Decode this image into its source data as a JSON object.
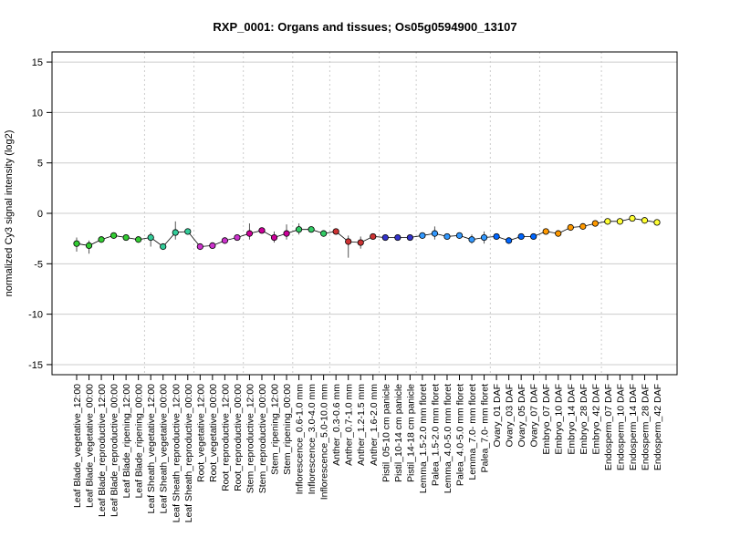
{
  "chart_data": {
    "type": "line",
    "title": "RXP_0001: Organs and tissues; Os05g0594900_13107",
    "xlabel": "",
    "ylabel": "normalized Cy3 signal intensity (log2)",
    "ylim": [
      -16,
      16
    ],
    "yticks": [
      15,
      10,
      5,
      0,
      -5,
      -10,
      -15
    ],
    "ytick_labels": [
      "15",
      "10",
      "5",
      "0",
      "-5",
      "-10",
      "-15"
    ],
    "grid": "horizontal solid; vertical dotted group separators",
    "categories": [
      "Leaf Blade_vegetative_12:00",
      "Leaf Blade_vegetative_00:00",
      "Leaf Blade_reproductive_12:00",
      "Leaf Blade_reproductive_00:00",
      "Leaf Blade_ripening_12:00",
      "Leaf Blade_ripening_00:00",
      "Leaf Sheath_vegetative_12:00",
      "Leaf Sheath_vegetative_00:00",
      "Leaf Sheath_reproductive_12:00",
      "Leaf Sheath_reproductive_00:00",
      "Root_vegetative_12:00",
      "Root_vegetative_00:00",
      "Root_reproductive_12:00",
      "Root_reproductive_00:00",
      "Stem_reproductive_12:00",
      "Stem_reproductive_00:00",
      "Stem_ripening_12:00",
      "Stem_ripening_00:00",
      "Inflorescence_0.6-1.0 mm",
      "Inflorescence_3.0-4.0 mm",
      "Inflorescence_5.0-10.0 mm",
      "Anther_0.3-0.6 mm",
      "Anther_0.7-1.0 mm",
      "Anther_1.2-1.5 mm",
      "Anther_1.6-2.0 mm",
      "Pistil_05-10 cm panicle",
      "Pistil_10-14 cm panicle",
      "Pistil_14-18 cm panicle",
      "Lemma_1.5-2.0 mm floret",
      "Palea_1.5-2.0 mm floret",
      "Lemma_4.0-5.0 mm floret",
      "Palea_4.0-5.0 mm floret",
      "Lemma_7.0- mm floret",
      "Palea_7.0- mm floret",
      "Ovary_01 DAF",
      "Ovary_03 DAF",
      "Ovary_05 DAF",
      "Ovary_07 DAF",
      "Embryo_07 DAF",
      "Embryo_10 DAF",
      "Embryo_14 DAF",
      "Embryo_28 DAF",
      "Embryo_42 DAF",
      "Endosperm_07 DAF",
      "Endosperm_10 DAF",
      "Endosperm_14 DAF",
      "Endosperm_28 DAF",
      "Endosperm_42 DAF"
    ],
    "values": [
      -3.0,
      -3.2,
      -2.6,
      -2.2,
      -2.4,
      -2.6,
      -2.4,
      -3.3,
      -1.9,
      -1.8,
      -3.3,
      -3.2,
      -2.7,
      -2.4,
      -2.0,
      -1.7,
      -2.4,
      -2.0,
      -1.6,
      -1.6,
      -2.0,
      -1.8,
      -2.8,
      -2.9,
      -2.3,
      -2.4,
      -2.4,
      -2.4,
      -2.2,
      -2.0,
      -2.3,
      -2.2,
      -2.6,
      -2.4,
      -2.3,
      -2.7,
      -2.3,
      -2.3,
      -1.8,
      -2.0,
      -1.4,
      -1.3,
      -1.0,
      -0.8,
      -0.8,
      -0.5,
      -0.7,
      -0.9
    ],
    "error_bars": [
      {
        "index": 0,
        "low": -3.8,
        "high": -2.4
      },
      {
        "index": 1,
        "low": -4.0,
        "high": -2.7
      },
      {
        "index": 6,
        "low": -3.3,
        "high": -1.9
      },
      {
        "index": 8,
        "low": -2.6,
        "high": -0.8
      },
      {
        "index": 14,
        "low": -2.6,
        "high": -1.0
      },
      {
        "index": 16,
        "low": -2.9,
        "high": -1.8
      },
      {
        "index": 17,
        "low": -2.6,
        "high": -1.1
      },
      {
        "index": 18,
        "low": -2.1,
        "high": -1.0
      },
      {
        "index": 22,
        "low": -4.4,
        "high": -2.2
      },
      {
        "index": 23,
        "low": -3.5,
        "high": -2.3
      },
      {
        "index": 29,
        "low": -2.6,
        "high": -1.3
      },
      {
        "index": 32,
        "low": -3.0,
        "high": -2.1
      },
      {
        "index": 33,
        "low": -3.0,
        "high": -1.8
      }
    ],
    "point_colors": [
      "#33cc33",
      "#33cc33",
      "#33cc33",
      "#33cc33",
      "#33cc33",
      "#33cc33",
      "#33cc99",
      "#33cc99",
      "#33cc99",
      "#33cc99",
      "#cc33cc",
      "#cc33cc",
      "#cc33cc",
      "#cc33cc",
      "#cc0099",
      "#cc0099",
      "#cc0099",
      "#cc0099",
      "#33cc66",
      "#33cc66",
      "#33cc66",
      "#cc3333",
      "#cc3333",
      "#cc3333",
      "#cc3333",
      "#3333cc",
      "#3333cc",
      "#3333cc",
      "#3399ff",
      "#3399ff",
      "#3399ff",
      "#3399ff",
      "#3399ff",
      "#3399ff",
      "#0066ff",
      "#0066ff",
      "#0066ff",
      "#0066ff",
      "#ff9900",
      "#ff9900",
      "#ff9900",
      "#ff9900",
      "#ff9900",
      "#ffff33",
      "#ffff33",
      "#ffff33",
      "#ffff33",
      "#ffff33"
    ],
    "vertical_separators_after_index": [
      5,
      9,
      13,
      17,
      20,
      24,
      27,
      33,
      37,
      42
    ]
  }
}
